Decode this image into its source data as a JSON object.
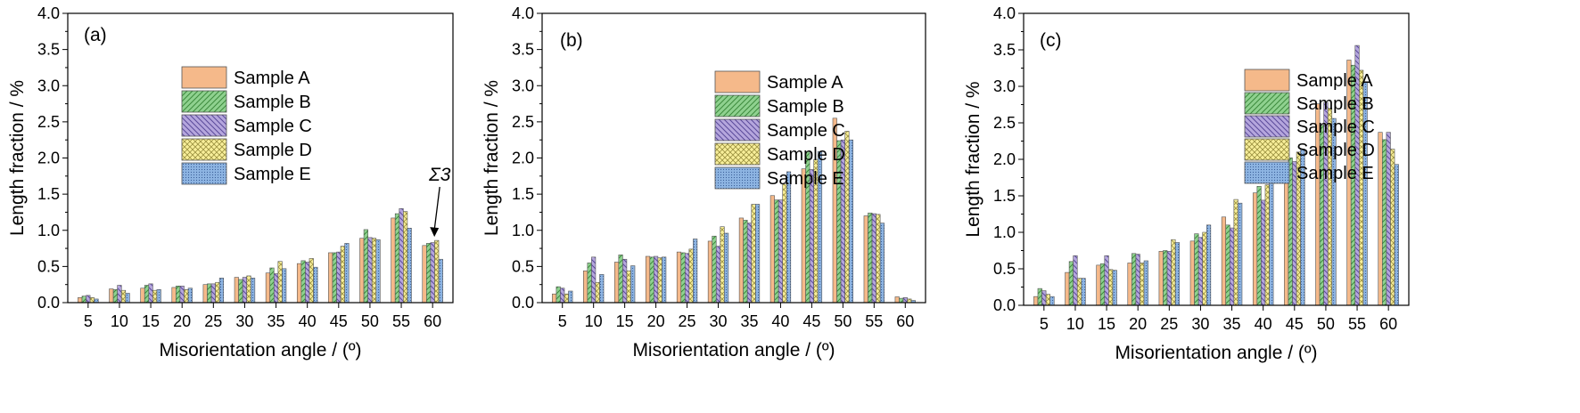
{
  "series_names": [
    "Sample A",
    "Sample B",
    "Sample C",
    "Sample D",
    "Sample E"
  ],
  "series_styles": [
    {
      "fill": "#f5b98a",
      "pattern": "none"
    },
    {
      "fill": "#8fd18f",
      "pattern": "diag-right"
    },
    {
      "fill": "#b5a6dd",
      "pattern": "diag-left"
    },
    {
      "fill": "#f8ef9a",
      "pattern": "cross"
    },
    {
      "fill": "#8db4e2",
      "pattern": "dots"
    }
  ],
  "chart_data": [
    {
      "type": "bar",
      "panel_label": "(a)",
      "xlabel": "Misorientation angle / (º)",
      "ylabel": "Length fraction / %",
      "ylim": [
        0,
        4.0
      ],
      "yticks": [
        "0.0",
        "0.5",
        "1.0",
        "1.5",
        "2.0",
        "2.5",
        "3.0",
        "3.5",
        "4.0"
      ],
      "categories": [
        "5",
        "10",
        "15",
        "20",
        "25",
        "30",
        "35",
        "40",
        "45",
        "50",
        "55",
        "60"
      ],
      "legend_position": "upper-left-center",
      "annotation": {
        "text": "Σ3",
        "category": "60"
      },
      "series": [
        {
          "name": "Sample A",
          "values": [
            0.07,
            0.19,
            0.2,
            0.21,
            0.25,
            0.35,
            0.41,
            0.54,
            0.69,
            0.89,
            1.17,
            0.79
          ]
        },
        {
          "name": "Sample B",
          "values": [
            0.09,
            0.18,
            0.24,
            0.23,
            0.26,
            0.32,
            0.48,
            0.58,
            0.69,
            1.01,
            1.23,
            0.82
          ]
        },
        {
          "name": "Sample C",
          "values": [
            0.1,
            0.24,
            0.26,
            0.23,
            0.26,
            0.35,
            0.4,
            0.56,
            0.7,
            0.9,
            1.3,
            0.83
          ]
        },
        {
          "name": "Sample D",
          "values": [
            0.07,
            0.17,
            0.17,
            0.18,
            0.28,
            0.37,
            0.57,
            0.61,
            0.78,
            0.89,
            1.26,
            0.86
          ]
        },
        {
          "name": "Sample E",
          "values": [
            0.05,
            0.13,
            0.18,
            0.2,
            0.34,
            0.34,
            0.47,
            0.49,
            0.82,
            0.87,
            1.03,
            0.6
          ]
        }
      ]
    },
    {
      "type": "bar",
      "panel_label": "(b)",
      "xlabel": "Misorientation angle / (º)",
      "ylabel": "Length fraction / %",
      "ylim": [
        0,
        4.0
      ],
      "yticks": [
        "0.0",
        "0.5",
        "1.0",
        "1.5",
        "2.0",
        "2.5",
        "3.0",
        "3.5",
        "4.0"
      ],
      "categories": [
        "5",
        "10",
        "15",
        "20",
        "25",
        "30",
        "35",
        "40",
        "45",
        "50",
        "55",
        "60"
      ],
      "legend_position": "upper-center",
      "series": [
        {
          "name": "Sample A",
          "values": [
            0.12,
            0.44,
            0.56,
            0.64,
            0.7,
            0.85,
            1.17,
            1.48,
            1.85,
            2.55,
            1.2,
            0.08
          ]
        },
        {
          "name": "Sample B",
          "values": [
            0.22,
            0.55,
            0.66,
            0.63,
            0.69,
            0.92,
            1.14,
            1.42,
            2.09,
            2.24,
            1.24,
            0.06
          ]
        },
        {
          "name": "Sample C",
          "values": [
            0.2,
            0.63,
            0.6,
            0.64,
            0.68,
            0.78,
            1.1,
            1.42,
            1.84,
            2.25,
            1.23,
            0.07
          ]
        },
        {
          "name": "Sample D",
          "values": [
            0.12,
            0.28,
            0.44,
            0.62,
            0.74,
            1.05,
            1.36,
            1.64,
            1.98,
            2.37,
            1.22,
            0.05
          ]
        },
        {
          "name": "Sample E",
          "values": [
            0.16,
            0.39,
            0.51,
            0.63,
            0.88,
            0.96,
            1.36,
            1.81,
            2.09,
            2.25,
            1.1,
            0.03
          ]
        }
      ]
    },
    {
      "type": "bar",
      "panel_label": "(c)",
      "xlabel": "Misorientation angle / (º)",
      "ylabel": "Length fraction / %",
      "ylim": [
        0,
        4.0
      ],
      "yticks": [
        "0.0",
        "0.5",
        "1.0",
        "1.5",
        "2.0",
        "2.5",
        "3.0",
        "3.5",
        "4.0"
      ],
      "categories": [
        "5",
        "10",
        "15",
        "20",
        "25",
        "30",
        "35",
        "40",
        "45",
        "50",
        "55",
        "60"
      ],
      "legend_position": "upper-left-center",
      "series": [
        {
          "name": "Sample A",
          "values": [
            0.12,
            0.45,
            0.55,
            0.58,
            0.74,
            0.88,
            1.21,
            1.54,
            1.9,
            2.76,
            3.36,
            2.37
          ]
        },
        {
          "name": "Sample B",
          "values": [
            0.23,
            0.6,
            0.57,
            0.71,
            0.75,
            0.98,
            1.1,
            1.63,
            2.02,
            2.47,
            3.29,
            2.27
          ]
        },
        {
          "name": "Sample C",
          "values": [
            0.2,
            0.68,
            0.68,
            0.7,
            0.74,
            0.93,
            1.06,
            1.44,
            1.97,
            2.78,
            3.56,
            2.37
          ]
        },
        {
          "name": "Sample D",
          "values": [
            0.15,
            0.37,
            0.49,
            0.58,
            0.9,
            1.0,
            1.45,
            1.65,
            2.1,
            2.7,
            3.22,
            2.14
          ]
        },
        {
          "name": "Sample E",
          "values": [
            0.12,
            0.37,
            0.48,
            0.61,
            0.86,
            1.1,
            1.4,
            1.7,
            2.14,
            2.56,
            3.06,
            1.93
          ]
        }
      ]
    }
  ]
}
